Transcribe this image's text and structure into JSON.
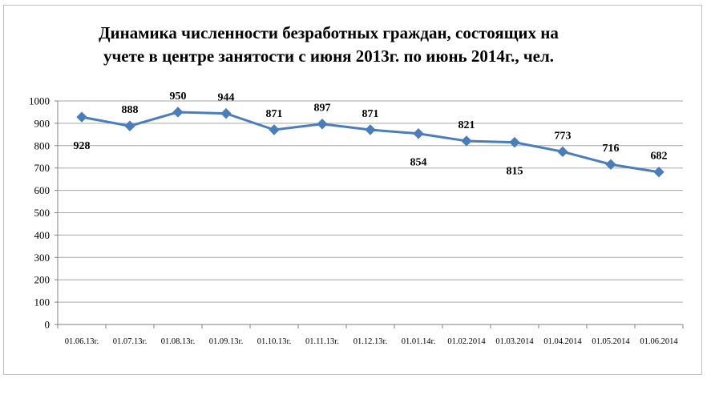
{
  "chart_data": {
    "type": "line",
    "title_lines": [
      "Динамика численности безработных граждан, состоящих на",
      "учете в центре занятости с июня 2013г. по июнь 2014г., чел."
    ],
    "categories": [
      "01.06.13г.",
      "01.07.13г.",
      "01.08.13г.",
      "01.09.13г.",
      "01.10.13г.",
      "01.11.13г.",
      "01.12.13г.",
      "01.01.14г.",
      "01.02.2014",
      "01.03.2014",
      "01.04.2014",
      "01.05.2014",
      "01.06.2014"
    ],
    "values": [
      928,
      888,
      950,
      944,
      871,
      897,
      871,
      854,
      821,
      815,
      773,
      716,
      682
    ],
    "label_positions": [
      "below",
      "above",
      "above",
      "above",
      "above",
      "above",
      "above",
      "below",
      "above",
      "below",
      "above",
      "above",
      "above"
    ],
    "ylim": [
      0,
      1000
    ],
    "yticks": [
      0,
      100,
      200,
      300,
      400,
      500,
      600,
      700,
      800,
      900,
      1000
    ],
    "grid": true,
    "legend": "none",
    "series_color": "#4a7ebb",
    "grid_color": "#a6a6a6"
  }
}
